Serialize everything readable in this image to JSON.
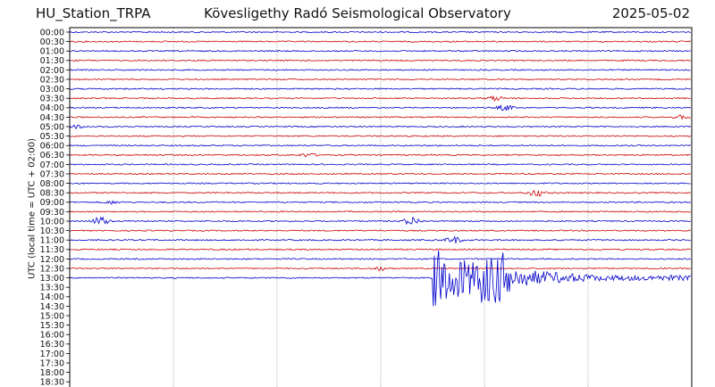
{
  "header": {
    "station": "HU_Station_TRPA",
    "title": "Kövesligethy Radó Seismological Observatory",
    "date": "2025-05-02"
  },
  "chart_data": {
    "type": "line",
    "title": "Kövesligethy Radó Seismological Observatory",
    "ylabel": "UTC (local time = UTC + 02:00)",
    "xlabel": "",
    "y_tick_labels": [
      "00:00",
      "00:30",
      "01:00",
      "01:30",
      "02:00",
      "02:30",
      "03:00",
      "03:30",
      "04:00",
      "04:30",
      "05:00",
      "05:30",
      "06:00",
      "06:30",
      "07:00",
      "07:30",
      "08:00",
      "08:30",
      "09:00",
      "09:30",
      "10:00",
      "10:30",
      "11:00",
      "11:30",
      "12:00",
      "12:30",
      "13:00",
      "13:30",
      "14:00",
      "14:30",
      "15:00",
      "15:30",
      "16:00",
      "16:30",
      "17:00",
      "17:30",
      "18:00",
      "18:30"
    ],
    "trace_colors": [
      "#0000cc",
      "#cc0000"
    ],
    "recorded_trace_count": 27,
    "x_range_minutes": [
      0,
      30
    ],
    "vertical_grid_minutes": [
      5,
      10,
      15,
      20,
      25
    ],
    "grid": true,
    "events": [
      {
        "row": "03:30",
        "minute": 20.5,
        "amplitude": 2.5
      },
      {
        "row": "04:00",
        "minute": 21.0,
        "amplitude": 3
      },
      {
        "row": "04:30",
        "minute": 29.5,
        "amplitude": 2
      },
      {
        "row": "05:00",
        "minute": 0.3,
        "amplitude": 2
      },
      {
        "row": "06:30",
        "minute": 11.5,
        "amplitude": 2
      },
      {
        "row": "08:30",
        "minute": 22.5,
        "amplitude": 4
      },
      {
        "row": "09:00",
        "minute": 2.0,
        "amplitude": 1.5
      },
      {
        "row": "10:00",
        "minute": 1.5,
        "amplitude": 5
      },
      {
        "row": "10:00",
        "minute": 16.5,
        "amplitude": 5
      },
      {
        "row": "11:00",
        "minute": 18.5,
        "amplitude": 4
      },
      {
        "row": "12:30",
        "minute": 15.0,
        "amplitude": 2
      },
      {
        "row": "13:00",
        "minute": 17.5,
        "amplitude": 34,
        "duration_minutes": 12.5
      }
    ]
  }
}
